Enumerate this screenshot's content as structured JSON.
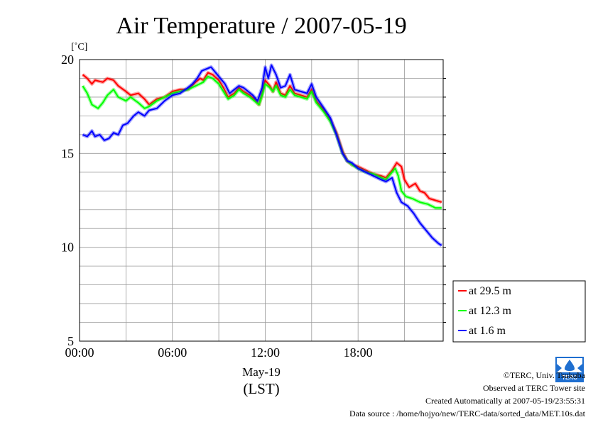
{
  "chart_data": {
    "type": "line",
    "title": "Air Temperature / 2007-05-19",
    "ylabel": "[˚C]",
    "xlabel": "May-19",
    "xunit": "(LST)",
    "x_ticks": [
      "00:00",
      "06:00",
      "12:00",
      "18:00"
    ],
    "y_ticks": [
      5,
      10,
      15,
      20
    ],
    "xlim": [
      0,
      23.5
    ],
    "ylim": [
      5,
      20
    ],
    "grid": true,
    "legend_position": "bottom-right, outside plot",
    "series": [
      {
        "name": "at 29.5 m",
        "color": "#ff0000",
        "points": [
          [
            0.2,
            19.2
          ],
          [
            0.5,
            19.0
          ],
          [
            0.8,
            18.7
          ],
          [
            1.0,
            18.9
          ],
          [
            1.5,
            18.8
          ],
          [
            1.8,
            19.0
          ],
          [
            2.2,
            18.9
          ],
          [
            2.5,
            18.6
          ],
          [
            3.0,
            18.3
          ],
          [
            3.3,
            18.1
          ],
          [
            3.8,
            18.2
          ],
          [
            4.2,
            17.9
          ],
          [
            4.5,
            17.6
          ],
          [
            5.0,
            17.9
          ],
          [
            5.5,
            18.0
          ],
          [
            6.0,
            18.3
          ],
          [
            6.5,
            18.4
          ],
          [
            7.0,
            18.4
          ],
          [
            7.5,
            18.8
          ],
          [
            7.8,
            19.0
          ],
          [
            8.0,
            18.9
          ],
          [
            8.3,
            19.3
          ],
          [
            8.6,
            19.2
          ],
          [
            9.0,
            18.9
          ],
          [
            9.3,
            18.5
          ],
          [
            9.6,
            18.0
          ],
          [
            10.0,
            18.2
          ],
          [
            10.3,
            18.5
          ],
          [
            10.6,
            18.3
          ],
          [
            11.0,
            18.1
          ],
          [
            11.3,
            17.9
          ],
          [
            11.6,
            17.6
          ],
          [
            11.8,
            18.2
          ],
          [
            12.0,
            18.9
          ],
          [
            12.3,
            18.6
          ],
          [
            12.5,
            18.3
          ],
          [
            12.7,
            18.8
          ],
          [
            13.0,
            18.2
          ],
          [
            13.3,
            18.1
          ],
          [
            13.6,
            18.6
          ],
          [
            13.9,
            18.2
          ],
          [
            14.3,
            18.1
          ],
          [
            14.7,
            18.0
          ],
          [
            15.0,
            18.4
          ],
          [
            15.3,
            17.8
          ],
          [
            15.8,
            17.3
          ],
          [
            16.2,
            16.8
          ],
          [
            16.6,
            16.1
          ],
          [
            17.0,
            15.1
          ],
          [
            17.3,
            14.6
          ],
          [
            17.6,
            14.4
          ],
          [
            18.0,
            14.3
          ],
          [
            18.5,
            14.1
          ],
          [
            19.0,
            13.9
          ],
          [
            19.5,
            13.8
          ],
          [
            19.8,
            13.7
          ],
          [
            20.2,
            14.1
          ],
          [
            20.5,
            14.5
          ],
          [
            20.8,
            14.3
          ],
          [
            21.0,
            13.6
          ],
          [
            21.3,
            13.2
          ],
          [
            21.7,
            13.4
          ],
          [
            22.0,
            13.0
          ],
          [
            22.3,
            12.9
          ],
          [
            22.6,
            12.6
          ],
          [
            23.0,
            12.5
          ],
          [
            23.4,
            12.4
          ]
        ]
      },
      {
        "name": "at 12.3 m",
        "color": "#00ff00",
        "points": [
          [
            0.2,
            18.6
          ],
          [
            0.5,
            18.2
          ],
          [
            0.8,
            17.6
          ],
          [
            1.2,
            17.4
          ],
          [
            1.5,
            17.7
          ],
          [
            1.8,
            18.1
          ],
          [
            2.2,
            18.4
          ],
          [
            2.5,
            18.0
          ],
          [
            3.0,
            17.8
          ],
          [
            3.3,
            18.0
          ],
          [
            3.8,
            17.7
          ],
          [
            4.2,
            17.4
          ],
          [
            4.5,
            17.5
          ],
          [
            5.0,
            17.8
          ],
          [
            5.5,
            18.0
          ],
          [
            6.0,
            18.2
          ],
          [
            6.5,
            18.3
          ],
          [
            7.0,
            18.4
          ],
          [
            7.5,
            18.6
          ],
          [
            8.0,
            18.8
          ],
          [
            8.3,
            19.1
          ],
          [
            8.6,
            19.0
          ],
          [
            9.0,
            18.7
          ],
          [
            9.3,
            18.3
          ],
          [
            9.6,
            17.9
          ],
          [
            10.0,
            18.1
          ],
          [
            10.3,
            18.4
          ],
          [
            10.6,
            18.2
          ],
          [
            11.0,
            18.0
          ],
          [
            11.3,
            17.8
          ],
          [
            11.6,
            17.6
          ],
          [
            11.8,
            18.1
          ],
          [
            12.0,
            18.7
          ],
          [
            12.3,
            18.5
          ],
          [
            12.5,
            18.3
          ],
          [
            12.7,
            18.6
          ],
          [
            13.0,
            18.1
          ],
          [
            13.3,
            18.0
          ],
          [
            13.6,
            18.4
          ],
          [
            13.9,
            18.1
          ],
          [
            14.3,
            18.0
          ],
          [
            14.7,
            17.9
          ],
          [
            15.0,
            18.3
          ],
          [
            15.3,
            17.7
          ],
          [
            15.8,
            17.2
          ],
          [
            16.2,
            16.7
          ],
          [
            16.6,
            16.0
          ],
          [
            17.0,
            15.0
          ],
          [
            17.3,
            14.6
          ],
          [
            17.6,
            14.4
          ],
          [
            18.0,
            14.2
          ],
          [
            18.5,
            14.0
          ],
          [
            19.0,
            13.9
          ],
          [
            19.5,
            13.7
          ],
          [
            19.8,
            13.6
          ],
          [
            20.1,
            13.9
          ],
          [
            20.4,
            14.2
          ],
          [
            20.6,
            13.8
          ],
          [
            20.8,
            13.0
          ],
          [
            21.1,
            12.7
          ],
          [
            21.5,
            12.6
          ],
          [
            22.0,
            12.4
          ],
          [
            22.5,
            12.3
          ],
          [
            23.0,
            12.1
          ],
          [
            23.4,
            12.1
          ]
        ]
      },
      {
        "name": "at 1.6 m",
        "color": "#0000ff",
        "points": [
          [
            0.2,
            16.0
          ],
          [
            0.5,
            15.9
          ],
          [
            0.8,
            16.2
          ],
          [
            1.0,
            15.9
          ],
          [
            1.3,
            16.0
          ],
          [
            1.6,
            15.7
          ],
          [
            1.9,
            15.8
          ],
          [
            2.2,
            16.1
          ],
          [
            2.5,
            16.0
          ],
          [
            2.8,
            16.5
          ],
          [
            3.1,
            16.6
          ],
          [
            3.5,
            17.0
          ],
          [
            3.8,
            17.2
          ],
          [
            4.2,
            17.0
          ],
          [
            4.5,
            17.3
          ],
          [
            5.0,
            17.4
          ],
          [
            5.5,
            17.8
          ],
          [
            6.0,
            18.1
          ],
          [
            6.5,
            18.2
          ],
          [
            7.0,
            18.5
          ],
          [
            7.3,
            18.7
          ],
          [
            7.6,
            19.0
          ],
          [
            7.9,
            19.4
          ],
          [
            8.2,
            19.5
          ],
          [
            8.5,
            19.6
          ],
          [
            8.8,
            19.3
          ],
          [
            9.1,
            19.0
          ],
          [
            9.4,
            18.7
          ],
          [
            9.7,
            18.2
          ],
          [
            10.0,
            18.4
          ],
          [
            10.3,
            18.6
          ],
          [
            10.6,
            18.5
          ],
          [
            10.9,
            18.3
          ],
          [
            11.2,
            18.1
          ],
          [
            11.5,
            17.8
          ],
          [
            11.8,
            18.5
          ],
          [
            12.0,
            19.6
          ],
          [
            12.2,
            19.0
          ],
          [
            12.4,
            19.7
          ],
          [
            12.7,
            19.2
          ],
          [
            13.0,
            18.5
          ],
          [
            13.3,
            18.6
          ],
          [
            13.6,
            19.2
          ],
          [
            13.9,
            18.4
          ],
          [
            14.3,
            18.3
          ],
          [
            14.7,
            18.2
          ],
          [
            15.0,
            18.7
          ],
          [
            15.3,
            18.0
          ],
          [
            15.8,
            17.4
          ],
          [
            16.2,
            16.9
          ],
          [
            16.6,
            16.0
          ],
          [
            17.0,
            15.0
          ],
          [
            17.3,
            14.6
          ],
          [
            17.6,
            14.5
          ],
          [
            18.0,
            14.2
          ],
          [
            18.5,
            14.0
          ],
          [
            19.0,
            13.8
          ],
          [
            19.5,
            13.6
          ],
          [
            19.8,
            13.5
          ],
          [
            20.2,
            13.7
          ],
          [
            20.5,
            12.9
          ],
          [
            20.8,
            12.4
          ],
          [
            21.2,
            12.2
          ],
          [
            21.6,
            11.8
          ],
          [
            22.0,
            11.3
          ],
          [
            22.4,
            10.9
          ],
          [
            22.8,
            10.5
          ],
          [
            23.2,
            10.2
          ],
          [
            23.4,
            10.1
          ]
        ]
      }
    ]
  },
  "credits": {
    "copyright": "©TERC, Univ. Tsukuba",
    "observed": "Observed at TERC Tower site",
    "created": "Created Automatically at 2007-05-19/23:55:31",
    "source": "Data source : /home/hojyo/new/TERC-data/sorted_data/MET.10s.dat",
    "logo_text": "TERC"
  }
}
